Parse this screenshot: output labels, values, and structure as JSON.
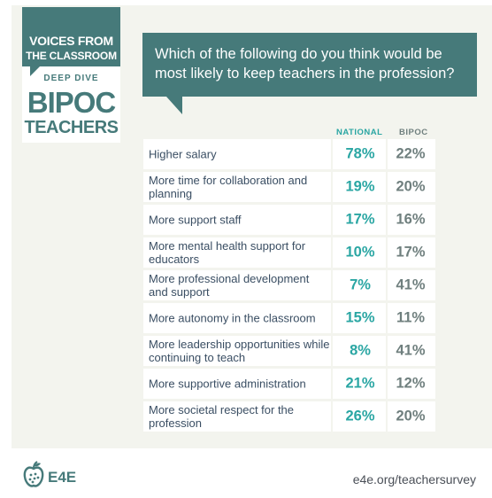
{
  "badge": {
    "line1": "VOICES FROM",
    "line2": "THE CLASSROOM",
    "line3": "DEEP DIVE",
    "line4": "BIPOC",
    "line5": "TEACHERS"
  },
  "question": "Which of the following do you think would be most likely to keep teachers in the profession?",
  "footer": {
    "logo_text": "E4E",
    "logo_icon": "apple-icon",
    "url": "e4e.org/teachersurvey"
  },
  "colors": {
    "accent": "#467a7a",
    "national": "#2aa6a3",
    "bipoc": "#6f7f7e",
    "label": "#3a4e63",
    "panel": "#f3f4ee"
  },
  "chart_data": {
    "type": "table",
    "columns": [
      "NATIONAL",
      "BIPOC"
    ],
    "rows": [
      {
        "label": "Higher salary",
        "national": "78%",
        "bipoc": "22%"
      },
      {
        "label": "More time for collaboration and planning",
        "national": "19%",
        "bipoc": "20%"
      },
      {
        "label": "More support staff",
        "national": "17%",
        "bipoc": "16%"
      },
      {
        "label": "More mental health support for educators",
        "national": "10%",
        "bipoc": "17%"
      },
      {
        "label": "More professional development and support",
        "national": "7%",
        "bipoc": "41%"
      },
      {
        "label": "More autonomy in the classroom",
        "national": "15%",
        "bipoc": "11%"
      },
      {
        "label": "More leadership opportunities while continuing to teach",
        "national": "8%",
        "bipoc": "41%"
      },
      {
        "label": "More supportive administration",
        "national": "21%",
        "bipoc": "12%"
      },
      {
        "label": "More societal respect for the profession",
        "national": "26%",
        "bipoc": "20%"
      }
    ]
  }
}
